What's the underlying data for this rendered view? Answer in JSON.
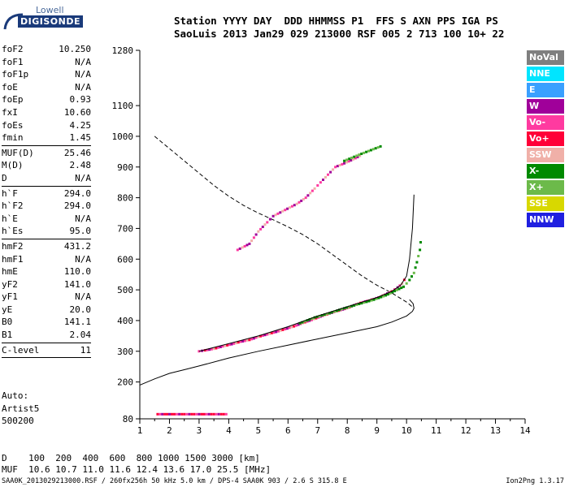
{
  "logo": {
    "top": "Lowell",
    "bottom": "DIGISONDE"
  },
  "header": {
    "line1": "Station YYYY DAY  DDD HHMMSS P1  FFS S AXN PPS IGA PS",
    "line2": "SaoLuis 2013 Jan29 029 213000 RSF 005 2 713 100 10+ 22"
  },
  "params": [
    {
      "label": "foF2",
      "value": "10.250"
    },
    {
      "label": "foF1",
      "value": "N/A"
    },
    {
      "label": "foF1p",
      "value": "N/A"
    },
    {
      "label": "foE",
      "value": "N/A"
    },
    {
      "label": "foEp",
      "value": "0.93"
    },
    {
      "label": "fxI",
      "value": "10.60"
    },
    {
      "label": "foEs",
      "value": "4.25"
    },
    {
      "label": "fmin",
      "value": "1.45",
      "sep": true
    },
    {
      "label": "MUF(D)",
      "value": "25.46"
    },
    {
      "label": "M(D)",
      "value": "2.48"
    },
    {
      "label": "D",
      "value": "N/A",
      "sep": true
    },
    {
      "label": "h`F",
      "value": "294.0"
    },
    {
      "label": "h`F2",
      "value": "294.0"
    },
    {
      "label": "h`E",
      "value": "N/A"
    },
    {
      "label": "h`Es",
      "value": "95.0",
      "sep": true
    },
    {
      "label": "hmF2",
      "value": "431.2"
    },
    {
      "label": "hmF1",
      "value": "N/A"
    },
    {
      "label": "hmE",
      "value": "110.0"
    },
    {
      "label": "yF2",
      "value": "141.0"
    },
    {
      "label": "yF1",
      "value": "N/A"
    },
    {
      "label": "yE",
      "value": "20.0"
    },
    {
      "label": "B0",
      "value": "141.1"
    },
    {
      "label": "B1",
      "value": "2.04",
      "sep": true
    },
    {
      "label": "C-level",
      "value": "11",
      "sep": true
    }
  ],
  "auto": {
    "line1": "Auto:",
    "line2": "Artist5",
    "line3": "500200"
  },
  "legend": [
    {
      "name": "NoVal",
      "color": "#7f7f7f"
    },
    {
      "name": "NNE",
      "color": "#00e5ff"
    },
    {
      "name": "E",
      "color": "#3aa0ff"
    },
    {
      "name": "W",
      "color": "#a0009a"
    },
    {
      "name": "Vo-",
      "color": "#ff3aa0"
    },
    {
      "name": "Vo+",
      "color": "#ff0038"
    },
    {
      "name": "SSW",
      "color": "#f0b0a8"
    },
    {
      "name": "X-",
      "color": "#008a00"
    },
    {
      "name": "X+",
      "color": "#6cba4a"
    },
    {
      "name": "SSE",
      "color": "#d8d800"
    },
    {
      "name": "NNW",
      "color": "#2020e0"
    }
  ],
  "muf_table": {
    "line1": "D    100  200  400  600  800 1000 1500 3000 [km]",
    "line2": "MUF  10.6 10.7 11.0 11.6 12.4 13.6 17.0 25.5 [MHz]"
  },
  "footer": {
    "left": "SAA0K_2013029213000.RSF / 260fx256h 50 kHz 5.0 km / DPS-4 SAA0K 903 / 2.6 S 315.8 E",
    "right": "Ion2Png 1.3.17"
  },
  "chart_data": {
    "type": "scatter",
    "xlim": [
      1,
      14
    ],
    "ylim": [
      80,
      1280
    ],
    "x_ticks": [
      1,
      2,
      3,
      4,
      5,
      6,
      7,
      8,
      9,
      10,
      11,
      12,
      13,
      14
    ],
    "y_ticks": [
      80,
      200,
      300,
      400,
      500,
      600,
      700,
      800,
      900,
      1000,
      1100,
      1280
    ],
    "dashed_profile": [
      [
        1.5,
        1000
      ],
      [
        2.0,
        960
      ],
      [
        2.5,
        920
      ],
      [
        3.0,
        880
      ],
      [
        3.5,
        840
      ],
      [
        4.0,
        805
      ],
      [
        4.5,
        775
      ],
      [
        5.0,
        750
      ],
      [
        5.5,
        728
      ],
      [
        6.0,
        705
      ],
      [
        6.5,
        680
      ],
      [
        7.0,
        650
      ],
      [
        7.5,
        615
      ],
      [
        8.0,
        580
      ],
      [
        8.5,
        545
      ],
      [
        9.0,
        515
      ],
      [
        9.5,
        490
      ],
      [
        10.0,
        460
      ],
      [
        10.25,
        440
      ]
    ],
    "solid_profile": [
      [
        1.0,
        190
      ],
      [
        1.5,
        210
      ],
      [
        2.0,
        228
      ],
      [
        2.5,
        240
      ],
      [
        3.0,
        252
      ],
      [
        4.0,
        278
      ],
      [
        5.0,
        300
      ],
      [
        6.0,
        320
      ],
      [
        7.0,
        340
      ],
      [
        8.0,
        360
      ],
      [
        9.0,
        380
      ],
      [
        9.5,
        395
      ],
      [
        10.0,
        415
      ],
      [
        10.2,
        430
      ],
      [
        10.25,
        440
      ],
      [
        10.22,
        455
      ],
      [
        10.1,
        468
      ]
    ],
    "trace_fit": [
      [
        3.0,
        300
      ],
      [
        4.0,
        325
      ],
      [
        5.0,
        350
      ],
      [
        6.0,
        380
      ],
      [
        7.0,
        415
      ],
      [
        7.5,
        430
      ],
      [
        8.0,
        445
      ],
      [
        8.5,
        460
      ],
      [
        9.0,
        475
      ],
      [
        9.5,
        495
      ],
      [
        9.8,
        515
      ],
      [
        10.0,
        545
      ],
      [
        10.1,
        600
      ],
      [
        10.2,
        700
      ],
      [
        10.25,
        810
      ]
    ],
    "o_trace": [
      [
        3.0,
        300
      ],
      [
        3.2,
        303
      ],
      [
        3.5,
        308
      ],
      [
        3.8,
        316
      ],
      [
        4.1,
        323
      ],
      [
        4.4,
        331
      ],
      [
        4.7,
        337
      ],
      [
        5.0,
        347
      ],
      [
        5.3,
        355
      ],
      [
        5.6,
        363
      ],
      [
        5.9,
        372
      ],
      [
        6.2,
        381
      ],
      [
        6.5,
        392
      ],
      [
        6.8,
        402
      ],
      [
        7.1,
        413
      ],
      [
        7.4,
        423
      ],
      [
        7.7,
        432
      ],
      [
        8.0,
        440
      ],
      [
        8.3,
        453
      ],
      [
        8.6,
        462
      ],
      [
        8.9,
        470
      ],
      [
        9.2,
        481
      ],
      [
        9.5,
        495
      ],
      [
        9.7,
        508
      ],
      [
        9.85,
        520
      ],
      [
        10.0,
        545
      ]
    ],
    "x_trace": [
      [
        6.4,
        391
      ],
      [
        6.9,
        410
      ],
      [
        7.4,
        424
      ],
      [
        7.9,
        440
      ],
      [
        8.4,
        454
      ],
      [
        8.9,
        468
      ],
      [
        9.3,
        482
      ],
      [
        9.6,
        496
      ],
      [
        9.9,
        510
      ],
      [
        10.1,
        532
      ],
      [
        10.25,
        555
      ],
      [
        10.35,
        590
      ],
      [
        10.45,
        630
      ],
      [
        10.5,
        680
      ]
    ],
    "second_hop_o": [
      [
        4.3,
        630
      ],
      [
        4.7,
        650
      ],
      [
        5.0,
        690
      ],
      [
        5.3,
        720
      ],
      [
        5.5,
        740
      ],
      [
        6.3,
        780
      ],
      [
        6.6,
        800
      ],
      [
        6.9,
        830
      ],
      [
        7.1,
        850
      ],
      [
        7.6,
        900
      ],
      [
        7.9,
        912
      ],
      [
        8.2,
        925
      ],
      [
        8.5,
        940
      ]
    ],
    "second_hop_x": [
      [
        7.9,
        920
      ],
      [
        8.4,
        940
      ],
      [
        8.8,
        955
      ],
      [
        9.2,
        970
      ]
    ],
    "es_trace": [
      [
        1.6,
        95
      ],
      [
        2.0,
        95
      ],
      [
        2.5,
        95
      ],
      [
        3.0,
        95
      ],
      [
        3.5,
        95
      ],
      [
        4.0,
        95
      ]
    ]
  }
}
